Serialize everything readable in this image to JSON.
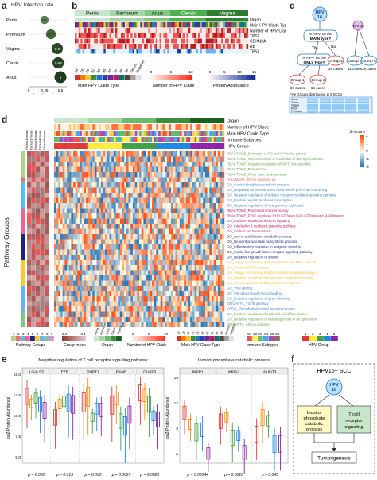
{
  "panels": {
    "a": "a",
    "b": "b",
    "c": "c",
    "d": "d",
    "e": "e",
    "f": "f"
  },
  "panel_a": {
    "title": "HPV Infection rate",
    "sites": [
      "Penis",
      "Perineum",
      "Vagina",
      "Cervix",
      "Anus"
    ],
    "rates": [
      0.5,
      0.7,
      0.9,
      0.93,
      1
    ],
    "rate_labels": [
      "0.5",
      "0.7",
      "0.9",
      "0.93",
      "1"
    ],
    "xlabel": "Infection rate",
    "xticks": [
      "0",
      "0.25",
      "0.5"
    ]
  },
  "panel_b": {
    "groups": [
      "Penis",
      "Perineum",
      "Anus",
      "Cervix",
      "Vagina"
    ],
    "row_labels": [
      "Organ",
      "Main HPV Clade Type",
      "Number of HPV Clade",
      "TP63",
      "CDKN2A",
      "RB",
      "TP53"
    ],
    "legend1_title": "Main HPV Clade Type",
    "legend1_items": [
      "16",
      "18",
      "26",
      "31",
      "33",
      "35",
      "45",
      "52",
      "56",
      "58",
      "Others",
      "Negative"
    ],
    "legend2_title": "Number of HPV Clade",
    "legend2_ticks": [
      "0",
      "5",
      "10"
    ],
    "legend3_title": "Protein Abundance",
    "legend3_ticks": [
      "0",
      "5",
      "10",
      "15"
    ]
  },
  "panel_c": {
    "root": "HPV 16",
    "q1": "Is HPV 16 the MAIN type?",
    "q2": "Is HPV 16 the ONLY type?",
    "yes": "Yes",
    "no": "No",
    "hpv16_sub": "HPV 16",
    "groups": [
      "Group 1",
      "Group 2",
      "Group 3",
      "Group 4",
      "Group 5"
    ],
    "counts": [
      "32 cases",
      "16 cases",
      "16 cases",
      "11 cases",
      "19 cases"
    ],
    "table_title": "Five Groups distribution in 5 SCCs",
    "table_rows": [
      "Anus",
      "Cervix",
      "Vagina",
      "Penis",
      "Perineum"
    ]
  },
  "panel_d": {
    "y_axis_label": "Pathway Groups",
    "col_labels": [
      "Group1 mean",
      "Group2 mean",
      "Group3 mean",
      "Group4 mean",
      "Group5 mean"
    ],
    "ann_rows": [
      "Organ",
      "Number of HPV Clade",
      "Main HPV Clade Type",
      "Immune Subtypes",
      "HPV Group"
    ],
    "zscore_title": "Z-score",
    "zscore_ticks": [
      "2",
      "1",
      "0",
      "-1",
      "-2"
    ],
    "pathways": [
      {
        "name": "REACTOME_Synthesis of IP3 and IP4 in the cytosol",
        "color": "#6aa84f"
      },
      {
        "name": "REACTOME_Interconversion of nucleotide di and triphosphates",
        "color": "#6aa84f"
      },
      {
        "name": "REACTOME_Negative regulation of NOTCH4 signaling",
        "color": "#6aa84f"
      },
      {
        "name": "REACTOME_Proteasome",
        "color": "#6aa84f"
      },
      {
        "name": "REACTOME_Other sialic acid pathway",
        "color": "#6aa84f"
      },
      {
        "name": "HALLMARK_KRAS signaling up",
        "color": "#e06666"
      },
      {
        "name": "GO_Inositol phosphate catabolic process",
        "color": "#3d85c6"
      },
      {
        "name": "GO_Regulation of nuclear transcribed mRNA poly A tail shortening",
        "color": "#3d85c6"
      },
      {
        "name": "GO_Negative regulation of antigen receptor mediated signaling pathway",
        "color": "#3d85c6"
      },
      {
        "name": "GO_Positive regulation of viral transcription",
        "color": "#3d85c6"
      },
      {
        "name": "GO_Negative regulation of viral genome replication",
        "color": "#3d85c6"
      },
      {
        "name": "REACTOME_Processed channel activity",
        "color": "#c2185b"
      },
      {
        "name": "REACTOME_PTK6 regulates RHO GTPases RAS GTPase and MAP kinases",
        "color": "#c2185b"
      },
      {
        "name": "GO_Positive regulation of KRAS signaling",
        "color": "#c2185b"
      },
      {
        "name": "GO_Interleukin 6 mediated signaling pathway",
        "color": "#c2185b"
      },
      {
        "name": "GO_Sodium ion homeostasis",
        "color": "#c2185b"
      },
      {
        "name": "GO_Amino acid betaine metabolic process",
        "color": "#1a237e"
      },
      {
        "name": "GO_Deoxyribonucleotide biosynthetic process",
        "color": "#1a237e"
      },
      {
        "name": "GO_Inflammatory response to antigenic stimulus",
        "color": "#1a237e"
      },
      {
        "name": "GO_Insulin like growth factor receptor signaling pathway",
        "color": "#1a237e"
      },
      {
        "name": "GO_Negative regulation of anoikis",
        "color": "#1a237e"
      },
      {
        "name": "GO_Antigen processing and presentation via MHC class Ib",
        "color": "#f1c232"
      },
      {
        "name": "GO_Pre-B cell differentiation",
        "color": "#f1c232"
      },
      {
        "name": "GO_Antigen processing and presentation of peptide antigen",
        "color": "#f1c232"
      },
      {
        "name": "GO_Positive regulation of lymphocyte mediated immunity",
        "color": "#f1c232"
      },
      {
        "name": "GO_Immunoglobulin mediated immune response",
        "color": "#f1c232"
      },
      {
        "name": "GO_Viral latency",
        "color": "#4a86c6"
      },
      {
        "name": "GO_Fibroblast growth factor binding",
        "color": "#4a86c6"
      },
      {
        "name": "GO_Negative regulation of gene silencing",
        "color": "#4a86c6"
      },
      {
        "name": "BIOCARTA_TGFB pathway",
        "color": "#4a86c6"
      },
      {
        "name": "KEGG_Phosphatidylinositol signaling system",
        "color": "#4a86c6"
      },
      {
        "name": "GO_Positive regulation of epithelial cell differentiation",
        "color": "#6aa84f"
      },
      {
        "name": "GO_Negative regulation of morphogenesis of an epithelium",
        "color": "#6aa84f"
      },
      {
        "name": "BIOCARTA_Athero pathway",
        "color": "#6aa84f"
      }
    ],
    "bottom_legends": [
      {
        "title": "Pathway Groups",
        "ticks": [
          "1",
          "2",
          "3",
          "4",
          "5",
          "6",
          "7",
          "8",
          "9"
        ]
      },
      {
        "title": "Group mean",
        "ticks": [
          "0.4",
          "-0.4"
        ]
      },
      {
        "title": "Organ",
        "ticks": [
          "Penis",
          "Perineum",
          "Anus",
          "Cervix",
          "Vagina"
        ]
      },
      {
        "title": "Number of HPV Clade",
        "ticks": [
          "0",
          "5",
          "10"
        ]
      },
      {
        "title": "Main HPV Clade Type",
        "ticks": [
          "16",
          "18",
          "26",
          "31",
          "33",
          "35",
          "45",
          "52",
          "56",
          "58",
          "Others",
          "Negative"
        ]
      },
      {
        "title": "Immune Subtypes",
        "ticks": [
          "C1",
          "C2",
          "C3",
          "C4",
          "C5",
          "C6"
        ]
      },
      {
        "title": "HPV Group",
        "ticks": [
          "1",
          "2",
          "3",
          "4",
          "5"
        ]
      }
    ]
  },
  "panel_e": {
    "left_title": "Negative regulation of T cell receptor signaling pathway",
    "left_genes": [
      "LGALS3",
      "EZR",
      "PHPT1",
      "PAWR",
      "DUSP3"
    ],
    "left_pvalues": [
      "p = 0.050",
      "p = 0.013",
      "p = 0.050",
      "p = 0.0029",
      "p = 0.0028"
    ],
    "right_title": "Inositol phosphate catabolic process",
    "right_genes": [
      "INPP1",
      "IMPA2",
      "NUDT3"
    ],
    "right_pvalues": [
      "p = 0.00044",
      "p = 0.0018",
      "p = 0.045"
    ],
    "ylabel": "log2(Protein Abundance)",
    "left_yticks": [
      "15.0",
      "12.5",
      "10.0",
      "7.5",
      "5.0"
    ],
    "right_yticks": [
      "15",
      "12",
      "9",
      "6"
    ],
    "group_colors": [
      "#e53935",
      "#fb8c00",
      "#43a047",
      "#1e88e5",
      "#8e24aa"
    ]
  },
  "panel_f": {
    "title": "HPV16+ SCC",
    "virus": "HPV 16",
    "box1": "Inositol phosphate catabolic process",
    "box2": "T cell receptor signaling",
    "outcome": "Tumorigenesis"
  }
}
